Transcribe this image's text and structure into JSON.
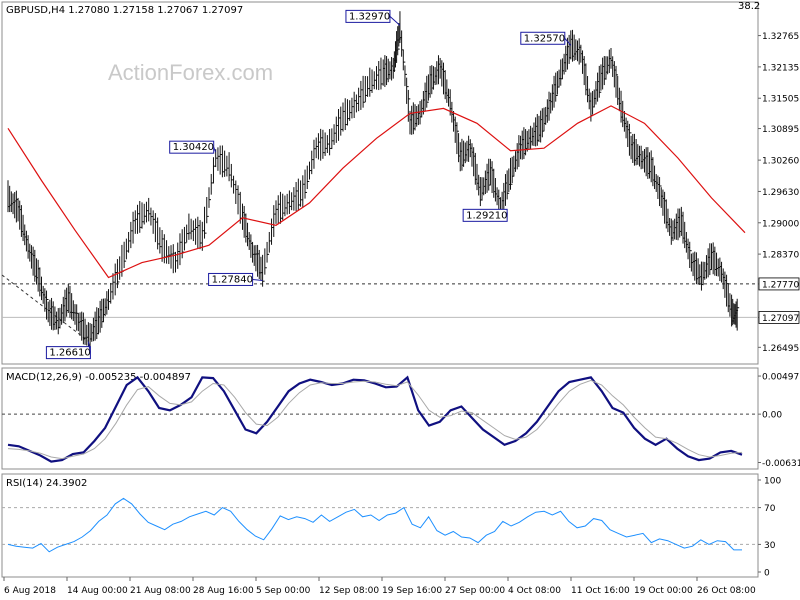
{
  "chart_data": [
    {
      "type": "line",
      "title": "GBPUSD,H4  1.27080 1.27158 1.27067 1.27097",
      "watermark": "ActionForex.com",
      "corner_value": "38.2",
      "ylim": [
        1.262,
        1.334
      ],
      "y_ticks": [
        "1.32765",
        "1.32135",
        "1.31505",
        "1.30895",
        "1.30260",
        "1.29630",
        "1.29000",
        "1.28370",
        "1.27770",
        "1.27097",
        "1.26495"
      ],
      "x_ticks": [
        "6 Aug 2018",
        "14 Aug 00:00",
        "21 Aug 08:00",
        "28 Aug 16:00",
        "5 Sep 00:00",
        "12 Sep 08:00",
        "19 Sep 16:00",
        "27 Sep 00:00",
        "4 Oct 08:00",
        "11 Oct 16:00",
        "19 Oct 00:00",
        "26 Oct 08:00"
      ],
      "hline": {
        "level": 1.2777,
        "label": "1.27770",
        "style": "dashed"
      },
      "current_price": {
        "level": 1.27097,
        "label": "1.27097"
      },
      "annotations": [
        {
          "label": "1.26610",
          "value": 1.2661
        },
        {
          "label": "1.30420",
          "value": 1.3042
        },
        {
          "label": "1.27840",
          "value": 1.2784
        },
        {
          "label": "1.32970",
          "value": 1.3297
        },
        {
          "label": "1.29210",
          "value": 1.2921
        },
        {
          "label": "1.32570",
          "value": 1.3257
        }
      ],
      "price_series": [
        {
          "t": 0,
          "v": 1.295
        },
        {
          "t": 3,
          "v": 1.2925
        },
        {
          "t": 6,
          "v": 1.285
        },
        {
          "t": 9,
          "v": 1.279
        },
        {
          "t": 12,
          "v": 1.272
        },
        {
          "t": 15,
          "v": 1.27
        },
        {
          "t": 18,
          "v": 1.2745
        },
        {
          "t": 21,
          "v": 1.27
        },
        {
          "t": 24,
          "v": 1.2668
        },
        {
          "t": 27,
          "v": 1.27
        },
        {
          "t": 30,
          "v": 1.2745
        },
        {
          "t": 34,
          "v": 1.282
        },
        {
          "t": 38,
          "v": 1.29
        },
        {
          "t": 42,
          "v": 1.2925
        },
        {
          "t": 46,
          "v": 1.285
        },
        {
          "t": 50,
          "v": 1.282
        },
        {
          "t": 54,
          "v": 1.289
        },
        {
          "t": 58,
          "v": 1.287
        },
        {
          "t": 62,
          "v": 1.303
        },
        {
          "t": 66,
          "v": 1.301
        },
        {
          "t": 70,
          "v": 1.291
        },
        {
          "t": 73,
          "v": 1.284
        },
        {
          "t": 76,
          "v": 1.28
        },
        {
          "t": 80,
          "v": 1.292
        },
        {
          "t": 84,
          "v": 1.294
        },
        {
          "t": 88,
          "v": 1.296
        },
        {
          "t": 92,
          "v": 1.305
        },
        {
          "t": 96,
          "v": 1.306
        },
        {
          "t": 100,
          "v": 1.311
        },
        {
          "t": 104,
          "v": 1.314
        },
        {
          "t": 108,
          "v": 1.318
        },
        {
          "t": 112,
          "v": 1.32
        },
        {
          "t": 115,
          "v": 1.321
        },
        {
          "t": 117,
          "v": 1.329
        },
        {
          "t": 120,
          "v": 1.31
        },
        {
          "t": 123,
          "v": 1.312
        },
        {
          "t": 126,
          "v": 1.318
        },
        {
          "t": 129,
          "v": 1.321
        },
        {
          "t": 132,
          "v": 1.314
        },
        {
          "t": 135,
          "v": 1.303
        },
        {
          "t": 138,
          "v": 1.305
        },
        {
          "t": 141,
          "v": 1.296
        },
        {
          "t": 144,
          "v": 1.3
        },
        {
          "t": 147,
          "v": 1.293
        },
        {
          "t": 150,
          "v": 1.2995
        },
        {
          "t": 153,
          "v": 1.305
        },
        {
          "t": 156,
          "v": 1.307
        },
        {
          "t": 159,
          "v": 1.309
        },
        {
          "t": 162,
          "v": 1.314
        },
        {
          "t": 165,
          "v": 1.32
        },
        {
          "t": 168,
          "v": 1.3255
        },
        {
          "t": 171,
          "v": 1.324
        },
        {
          "t": 174,
          "v": 1.313
        },
        {
          "t": 177,
          "v": 1.319
        },
        {
          "t": 180,
          "v": 1.323
        },
        {
          "t": 183,
          "v": 1.313
        },
        {
          "t": 186,
          "v": 1.305
        },
        {
          "t": 189,
          "v": 1.303
        },
        {
          "t": 192,
          "v": 1.301
        },
        {
          "t": 195,
          "v": 1.295
        },
        {
          "t": 198,
          "v": 1.288
        },
        {
          "t": 201,
          "v": 1.29
        },
        {
          "t": 204,
          "v": 1.282
        },
        {
          "t": 207,
          "v": 1.279
        },
        {
          "t": 210,
          "v": 1.283
        },
        {
          "t": 213,
          "v": 1.28
        },
        {
          "t": 216,
          "v": 1.272
        },
        {
          "t": 218,
          "v": 1.271
        }
      ],
      "moving_average": [
        {
          "t": 0,
          "v": 1.309
        },
        {
          "t": 10,
          "v": 1.2985
        },
        {
          "t": 20,
          "v": 1.2885
        },
        {
          "t": 30,
          "v": 1.279
        },
        {
          "t": 40,
          "v": 1.282
        },
        {
          "t": 50,
          "v": 1.2835
        },
        {
          "t": 60,
          "v": 1.2855
        },
        {
          "t": 70,
          "v": 1.291
        },
        {
          "t": 80,
          "v": 1.2895
        },
        {
          "t": 90,
          "v": 1.294
        },
        {
          "t": 100,
          "v": 1.301
        },
        {
          "t": 110,
          "v": 1.307
        },
        {
          "t": 120,
          "v": 1.312
        },
        {
          "t": 130,
          "v": 1.313
        },
        {
          "t": 140,
          "v": 1.31
        },
        {
          "t": 150,
          "v": 1.3045
        },
        {
          "t": 160,
          "v": 1.305
        },
        {
          "t": 170,
          "v": 1.31
        },
        {
          "t": 180,
          "v": 1.3135
        },
        {
          "t": 190,
          "v": 1.31
        },
        {
          "t": 200,
          "v": 1.303
        },
        {
          "t": 210,
          "v": 1.295
        },
        {
          "t": 220,
          "v": 1.288
        }
      ]
    },
    {
      "type": "line",
      "title": "MACD(12,26,9) -0.005235 -0.004897",
      "ylim": [
        -0.0069,
        0.0055
      ],
      "y_ticks": [
        "0.004971",
        "0.00",
        "-0.006311"
      ],
      "zero_line": 0.0,
      "series": [
        {
          "name": "MACD",
          "values": [
            -0.004,
            -0.0042,
            -0.0048,
            -0.0054,
            -0.0062,
            -0.006,
            -0.0052,
            -0.005,
            -0.0035,
            -0.0018,
            0.001,
            0.0038,
            0.0048,
            0.003,
            0.0008,
            0.0005,
            0.0012,
            0.0022,
            0.0048,
            0.0047,
            0.003,
            0.0005,
            -0.002,
            -0.0025,
            -0.001,
            0.001,
            0.003,
            0.004,
            0.0045,
            0.0042,
            0.0038,
            0.004,
            0.0045,
            0.0044,
            0.004,
            0.0035,
            0.0036,
            0.0048,
            0.0005,
            -0.0015,
            -0.001,
            0.0005,
            0.001,
            -0.0005,
            -0.002,
            -0.003,
            -0.004,
            -0.0035,
            -0.0025,
            -0.001,
            0.001,
            0.003,
            0.0042,
            0.0045,
            0.0048,
            0.003,
            0.0008,
            0.0002,
            -0.0018,
            -0.0032,
            -0.004,
            -0.0032,
            -0.0045,
            -0.0055,
            -0.006,
            -0.0058,
            -0.005,
            -0.0048,
            -0.0053
          ]
        },
        {
          "name": "Signal",
          "values": [
            -0.0045,
            -0.0046,
            -0.0048,
            -0.0051,
            -0.0056,
            -0.0058,
            -0.0055,
            -0.0052,
            -0.0045,
            -0.0032,
            -0.0012,
            0.0012,
            0.0032,
            0.0036,
            0.0024,
            0.0014,
            0.0012,
            0.0016,
            0.003,
            0.004,
            0.0038,
            0.0022,
            0.0002,
            -0.0013,
            -0.0015,
            -0.0004,
            0.0014,
            0.0028,
            0.0038,
            0.0041,
            0.004,
            0.004,
            0.0042,
            0.0043,
            0.0042,
            0.0039,
            0.0037,
            0.0042,
            0.0025,
            0.0005,
            -0.0004,
            -0.0002,
            0.0004,
            0.0002,
            -0.0008,
            -0.0018,
            -0.0028,
            -0.0033,
            -0.003,
            -0.002,
            -0.0004,
            0.0014,
            0.003,
            0.0039,
            0.0044,
            0.0038,
            0.0024,
            0.0012,
            -0.0004,
            -0.0018,
            -0.003,
            -0.0032,
            -0.0038,
            -0.0046,
            -0.0053,
            -0.0056,
            -0.0054,
            -0.0051,
            -0.005
          ]
        }
      ]
    },
    {
      "type": "line",
      "title": "RSI(14) 24.3902",
      "ylim": [
        0,
        100
      ],
      "y_ticks": [
        "100",
        "70",
        "30",
        "0"
      ],
      "levels": [
        70,
        30
      ],
      "series": [
        {
          "name": "RSI",
          "values": [
            30,
            28,
            27,
            26,
            31,
            22,
            27,
            30,
            33,
            38,
            45,
            55,
            62,
            74,
            80,
            74,
            63,
            54,
            50,
            46,
            52,
            55,
            60,
            63,
            66,
            62,
            70,
            66,
            55,
            46,
            39,
            35,
            47,
            61,
            57,
            60,
            58,
            54,
            62,
            55,
            60,
            65,
            68,
            60,
            62,
            56,
            62,
            64,
            70,
            52,
            48,
            60,
            45,
            40,
            44,
            38,
            37,
            32,
            40,
            44,
            55,
            50,
            54,
            60,
            65,
            66,
            62,
            66,
            55,
            48,
            50,
            58,
            56,
            46,
            42,
            38,
            40,
            42,
            32,
            36,
            34,
            30,
            26,
            28,
            35,
            30,
            34,
            33,
            24,
            24
          ]
        }
      ]
    }
  ]
}
